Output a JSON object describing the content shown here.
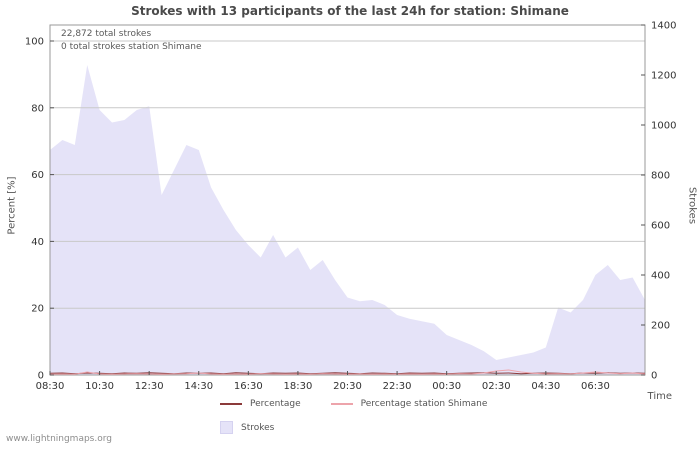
{
  "watermark": "www.lightningmaps.org",
  "chart_data": {
    "type": "area",
    "title": "Strokes with 13 participants of the last 24h for station: Shimane",
    "annotations": [
      "22,872 total strokes",
      "0 total strokes station Shimane"
    ],
    "x_label": "Time",
    "x_tick_labels": [
      "08:30",
      "10:30",
      "12:30",
      "14:30",
      "16:30",
      "18:30",
      "20:30",
      "22:30",
      "00:30",
      "02:30",
      "04:30",
      "06:30"
    ],
    "x_hours_span": 24,
    "points_interval_hours": 0.5,
    "left_axis": {
      "label": "Percent  [%]",
      "ticks": [
        0,
        20,
        40,
        60,
        80,
        100
      ],
      "max": 100
    },
    "right_axis": {
      "label": "Strokes",
      "ticks": [
        0,
        200,
        400,
        600,
        800,
        1000,
        1200,
        1400
      ],
      "max": 1400
    },
    "grid_color": "#c9c9c9",
    "axis_color": "#9a9a9a",
    "series": [
      {
        "name": "Strokes",
        "type": "area",
        "axis": "right",
        "color": "#e5e3f8",
        "values": [
          900,
          940,
          920,
          1240,
          1060,
          1010,
          1020,
          1060,
          1075,
          720,
          820,
          920,
          900,
          750,
          660,
          580,
          520,
          470,
          560,
          470,
          510,
          420,
          460,
          380,
          310,
          295,
          300,
          280,
          240,
          225,
          215,
          205,
          160,
          140,
          120,
          95,
          60,
          70,
          80,
          90,
          110,
          270,
          250,
          300,
          400,
          440,
          380,
          390,
          300
        ]
      },
      {
        "name": "Percentage",
        "type": "line",
        "axis": "left",
        "color": "#8b3a3a",
        "values": [
          0.5,
          0.6,
          0.4,
          0.6,
          0.5,
          0.4,
          0.6,
          0.5,
          0.7,
          0.5,
          0.4,
          0.6,
          0.5,
          0.6,
          0.4,
          0.7,
          0.5,
          0.4,
          0.6,
          0.5,
          0.6,
          0.4,
          0.5,
          0.7,
          0.5,
          0.4,
          0.6,
          0.5,
          0.4,
          0.6,
          0.5,
          0.6,
          0.4,
          0.5,
          0.6,
          0.7,
          0.5,
          0.6,
          0.4,
          0.5,
          0.6,
          0.5,
          0.4,
          0.6,
          0.5,
          0.7,
          0.5,
          0.6,
          0.5
        ]
      },
      {
        "name": "Percentage station Shimane",
        "type": "line",
        "axis": "left",
        "color": "#eda4ab",
        "values": [
          0.2,
          0.3,
          0.2,
          0.9,
          0.3,
          0.2,
          0.3,
          0.4,
          0.3,
          0.2,
          0.3,
          0.4,
          0.6,
          0.3,
          0.2,
          0.3,
          0.2,
          0.4,
          0.3,
          0.2,
          0.3,
          0.2,
          0.4,
          0.3,
          0.2,
          0.3,
          0.2,
          0.3,
          0.2,
          0.3,
          0.2,
          0.3,
          0.2,
          0.4,
          0.3,
          0.6,
          1.2,
          1.5,
          0.9,
          0.5,
          0.3,
          0.4,
          0.3,
          0.6,
          0.9,
          0.6,
          0.4,
          0.6,
          0.3
        ]
      }
    ]
  }
}
